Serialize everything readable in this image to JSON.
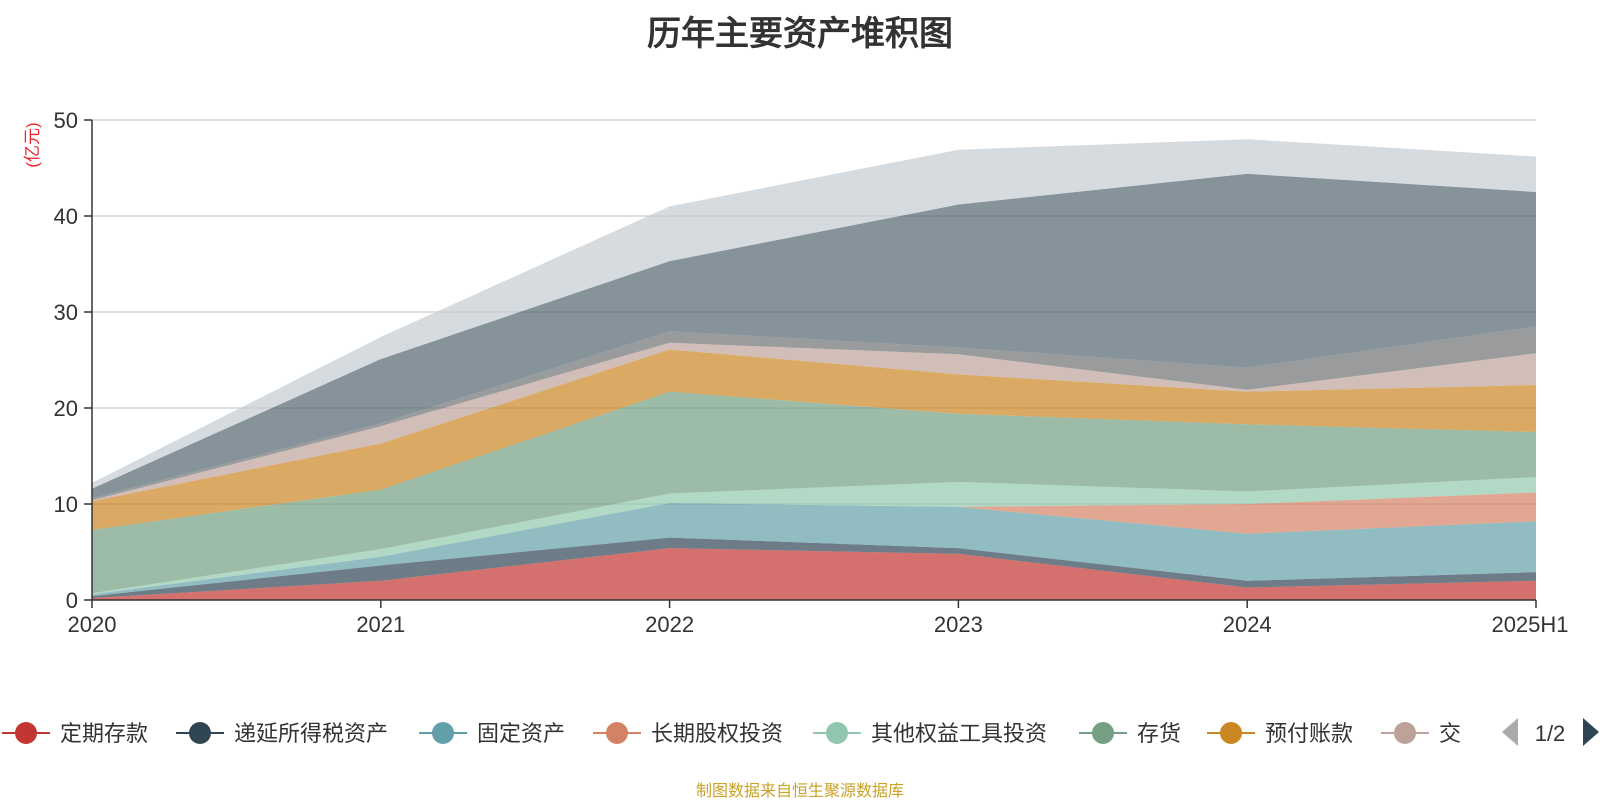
{
  "title": "历年主要资产堆积图",
  "source_note": "制图数据来自恒生聚源数据库",
  "legend_page": "1/2",
  "chart_data": {
    "type": "area",
    "stacked": true,
    "title": "历年主要资产堆积图",
    "ylabel": "(亿元)",
    "xlabel": "",
    "categories": [
      "2020",
      "2021",
      "2022",
      "2023",
      "2024",
      "2025H1"
    ],
    "ylim": [
      0,
      50
    ],
    "yticks": [
      0,
      10,
      20,
      30,
      40,
      50
    ],
    "grid": true,
    "legend_position": "bottom",
    "series": [
      {
        "name": "定期存款",
        "color": "#c23531",
        "values": [
          0.2,
          2.0,
          5.4,
          4.8,
          1.3,
          2.0
        ]
      },
      {
        "name": "递延所得税资产",
        "color": "#2f4554",
        "values": [
          0.2,
          1.6,
          1.1,
          0.6,
          0.7,
          0.9
        ]
      },
      {
        "name": "固定资产",
        "color": "#61a0a8",
        "values": [
          0.2,
          0.9,
          3.6,
          4.3,
          4.9,
          5.3
        ]
      },
      {
        "name": "长期股权投资",
        "color": "#d48265",
        "values": [
          0.0,
          0.0,
          0.0,
          0.0,
          3.1,
          3.0
        ]
      },
      {
        "name": "其他权益工具投资",
        "color": "#91c7ae",
        "values": [
          0.1,
          0.8,
          1.0,
          2.6,
          1.3,
          1.6
        ]
      },
      {
        "name": "存货",
        "color": "#749f83",
        "values": [
          6.6,
          6.2,
          10.6,
          7.1,
          7.0,
          4.7
        ]
      },
      {
        "name": "预付账款",
        "color": "#ca8622",
        "values": [
          3.0,
          4.8,
          4.4,
          4.1,
          3.4,
          4.9
        ]
      },
      {
        "name": "",
        "color": "#bda29a",
        "values": [
          0.1,
          1.8,
          0.7,
          2.1,
          0.2,
          3.3
        ]
      },
      {
        "name": "",
        "color": "#6e7074",
        "values": [
          0.2,
          0.3,
          1.2,
          0.7,
          2.3,
          2.8
        ]
      },
      {
        "name": "",
        "color": "#546570",
        "values": [
          1.0,
          6.7,
          7.3,
          14.9,
          20.2,
          14.0
        ]
      },
      {
        "name": "",
        "color": "#c4ccd3",
        "values": [
          0.6,
          2.3,
          5.7,
          5.7,
          3.6,
          3.7
        ]
      }
    ],
    "legend_visible": [
      "定期存款",
      "递延所得税资产",
      "固定资产",
      "长期股权投资",
      "其他权益工具投资",
      "存货",
      "预付账款",
      "交"
    ]
  }
}
